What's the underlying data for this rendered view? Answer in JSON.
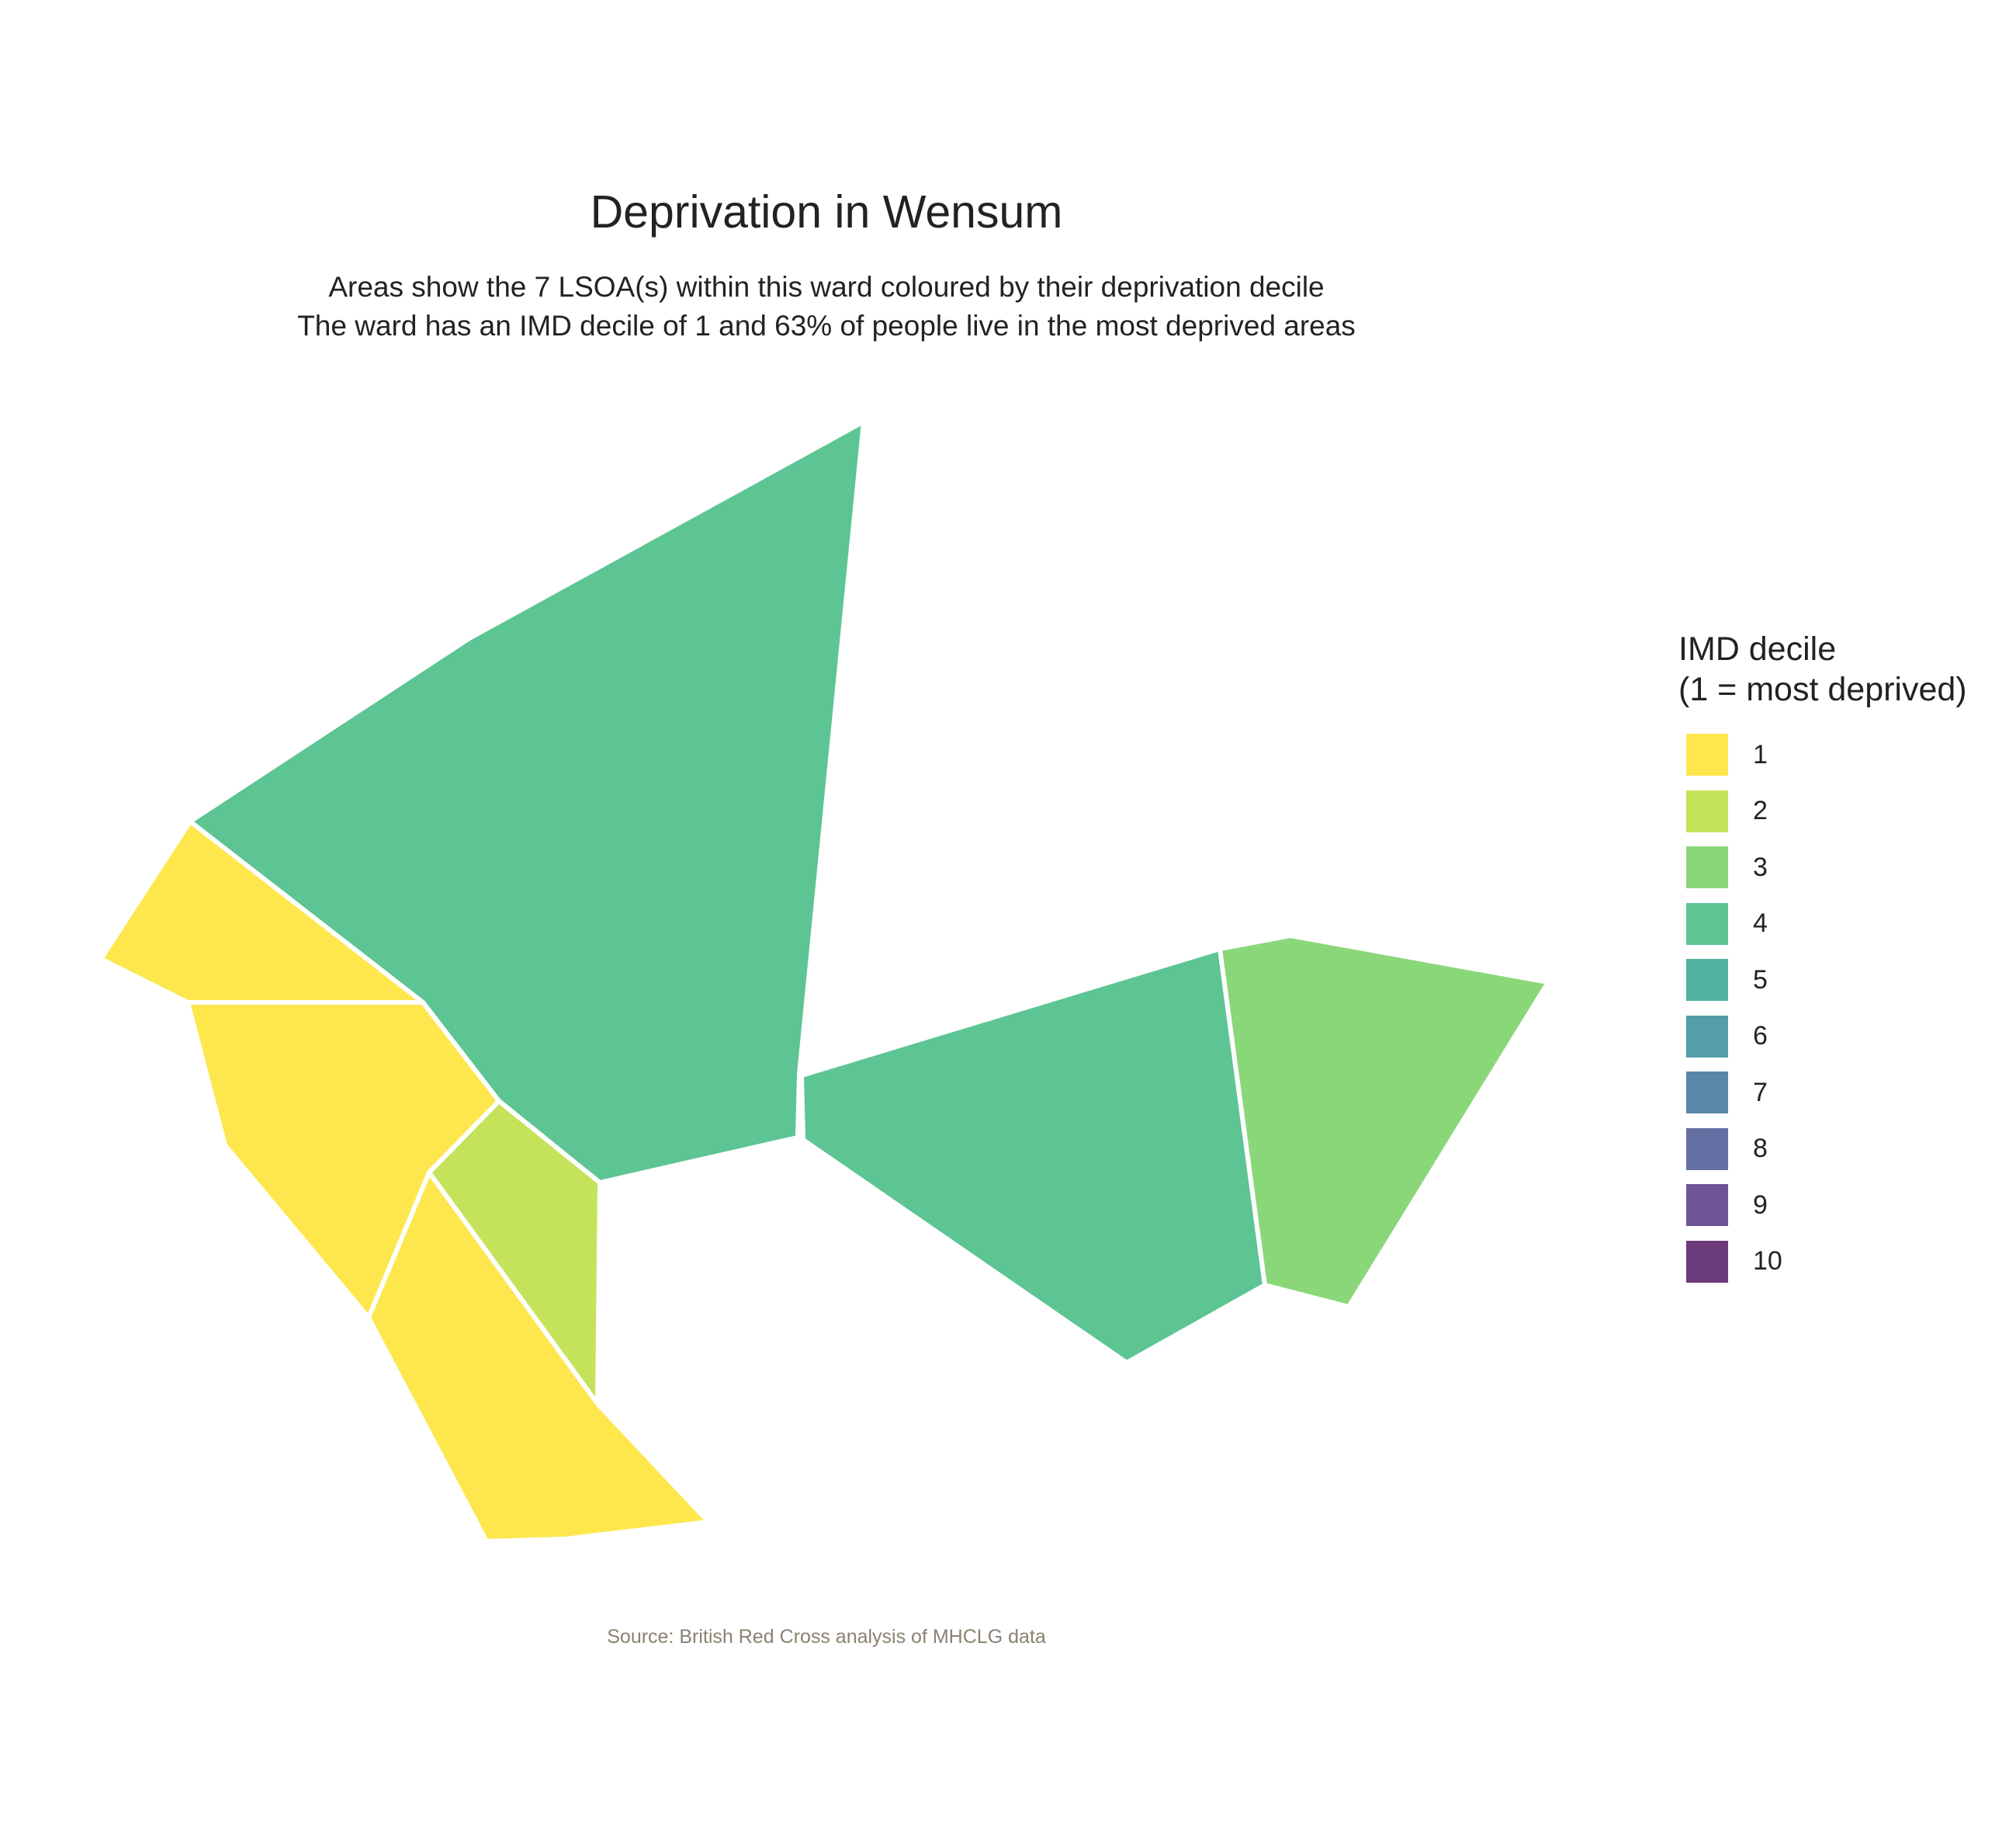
{
  "title": "Deprivation in Wensum",
  "subtitle_line1": "Areas show the 7 LSOA(s) within this ward coloured by their deprivation decile",
  "subtitle_line2": "The ward has an IMD decile of 1 and 63% of people live in the most deprived areas",
  "caption": "Source: British Red Cross analysis of MHCLG data",
  "legend": {
    "title_line1": "IMD decile",
    "title_line2": "(1 = most deprived)",
    "items": [
      {
        "label": "1",
        "color": "#FDE74C"
      },
      {
        "label": "2",
        "color": "#C5E35A"
      },
      {
        "label": "3",
        "color": "#8AD77A"
      },
      {
        "label": "4",
        "color": "#5DC593"
      },
      {
        "label": "5",
        "color": "#52B3A4"
      },
      {
        "label": "6",
        "color": "#559DA8"
      },
      {
        "label": "7",
        "color": "#5987A7"
      },
      {
        "label": "8",
        "color": "#636FA3"
      },
      {
        "label": "9",
        "color": "#6D5497"
      },
      {
        "label": "10",
        "color": "#6B3A7B"
      }
    ]
  },
  "areas": [
    {
      "name": "lsoa-north-large",
      "decile": 4
    },
    {
      "name": "lsoa-west-top",
      "decile": 1
    },
    {
      "name": "lsoa-west-middle",
      "decile": 1
    },
    {
      "name": "lsoa-south-center",
      "decile": 2
    },
    {
      "name": "lsoa-south-bottom",
      "decile": 1
    },
    {
      "name": "lsoa-east-center",
      "decile": 4
    },
    {
      "name": "lsoa-east-right",
      "decile": 3
    }
  ]
}
